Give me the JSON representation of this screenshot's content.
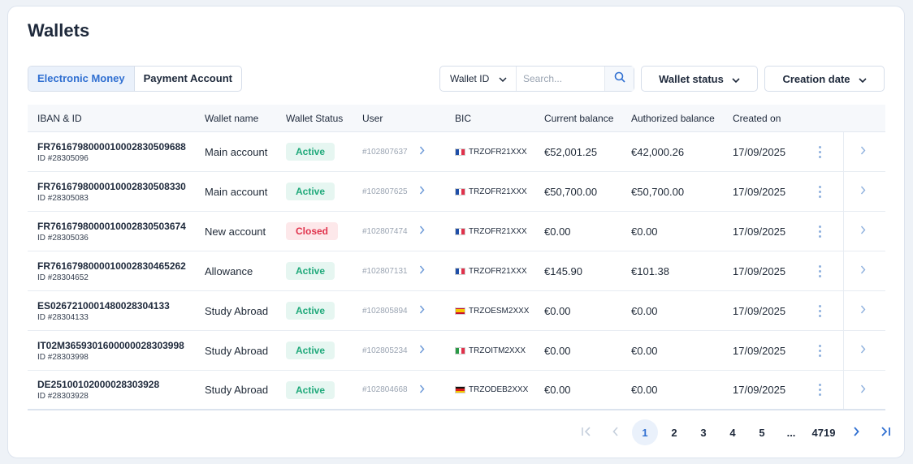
{
  "page": {
    "title": "Wallets"
  },
  "tabs": [
    {
      "label": "Electronic Money",
      "active": true
    },
    {
      "label": "Payment Account",
      "active": false
    }
  ],
  "filters": {
    "search_field": "Wallet ID",
    "search_placeholder": "Search...",
    "status_label": "Wallet status",
    "date_label": "Creation date"
  },
  "columns": [
    "IBAN & ID",
    "Wallet name",
    "Wallet Status",
    "User",
    "BIC",
    "Current balance",
    "Authorized balance",
    "Created on"
  ],
  "colors": {
    "accent": "#2f6fd1",
    "active": "#1fa97a",
    "closed": "#e0314b"
  },
  "rows": [
    {
      "iban": "FR7616798000010002830509688",
      "id": "ID #28305096",
      "name": "Main account",
      "status": "Active",
      "user": "#102807637",
      "country": "fr",
      "bic": "TRZOFR21XXX",
      "current": "€52,001.25",
      "authorized": "€42,000.26",
      "created": "17/09/2025"
    },
    {
      "iban": "FR7616798000010002830508330",
      "id": "ID #28305083",
      "name": "Main account",
      "status": "Active",
      "user": "#102807625",
      "country": "fr",
      "bic": "TRZOFR21XXX",
      "current": "€50,700.00",
      "authorized": "€50,700.00",
      "created": "17/09/2025"
    },
    {
      "iban": "FR7616798000010002830503674",
      "id": "ID #28305036",
      "name": "New account",
      "status": "Closed",
      "user": "#102807474",
      "country": "fr",
      "bic": "TRZOFR21XXX",
      "current": "€0.00",
      "authorized": "€0.00",
      "created": "17/09/2025"
    },
    {
      "iban": "FR7616798000010002830465262",
      "id": "ID #28304652",
      "name": "Allowance",
      "status": "Active",
      "user": "#102807131",
      "country": "fr",
      "bic": "TRZOFR21XXX",
      "current": "€145.90",
      "authorized": "€101.38",
      "created": "17/09/2025"
    },
    {
      "iban": "ES0267210001480028304133",
      "id": "ID #28304133",
      "name": "Study Abroad",
      "status": "Active",
      "user": "#102805894",
      "country": "es",
      "bic": "TRZOESM2XXX",
      "current": "€0.00",
      "authorized": "€0.00",
      "created": "17/09/2025"
    },
    {
      "iban": "IT02M3659301600000028303998",
      "id": "ID #28303998",
      "name": "Study Abroad",
      "status": "Active",
      "user": "#102805234",
      "country": "it",
      "bic": "TRZOITM2XXX",
      "current": "€0.00",
      "authorized": "€0.00",
      "created": "17/09/2025"
    },
    {
      "iban": "DE25100102000028303928",
      "id": "ID #28303928",
      "name": "Study Abroad",
      "status": "Active",
      "user": "#102804668",
      "country": "de",
      "bic": "TRZODEB2XXX",
      "current": "€0.00",
      "authorized": "€0.00",
      "created": "17/09/2025"
    }
  ],
  "pagination": {
    "pages": [
      "1",
      "2",
      "3",
      "4",
      "5"
    ],
    "current": "1",
    "ellipsis": "...",
    "last": "4719"
  }
}
